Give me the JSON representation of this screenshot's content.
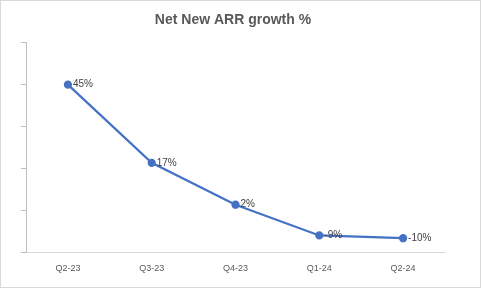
{
  "chart_data": {
    "type": "line",
    "title": "Net New ARR growth %",
    "categories": [
      "Q2-23",
      "Q3-23",
      "Q4-23",
      "Q1-24",
      "Q2-24"
    ],
    "values": [
      45,
      17,
      2,
      -9,
      -10
    ],
    "value_labels": [
      "45%",
      "17%",
      "2%",
      "-9%",
      "-10%"
    ],
    "color": "#4472c4",
    "marker": "circle",
    "ylim": [
      -15,
      60
    ],
    "yticks": [
      -15,
      0,
      15,
      30,
      45,
      60
    ],
    "grid": false,
    "data_labels": true,
    "tick_labels": "x"
  }
}
